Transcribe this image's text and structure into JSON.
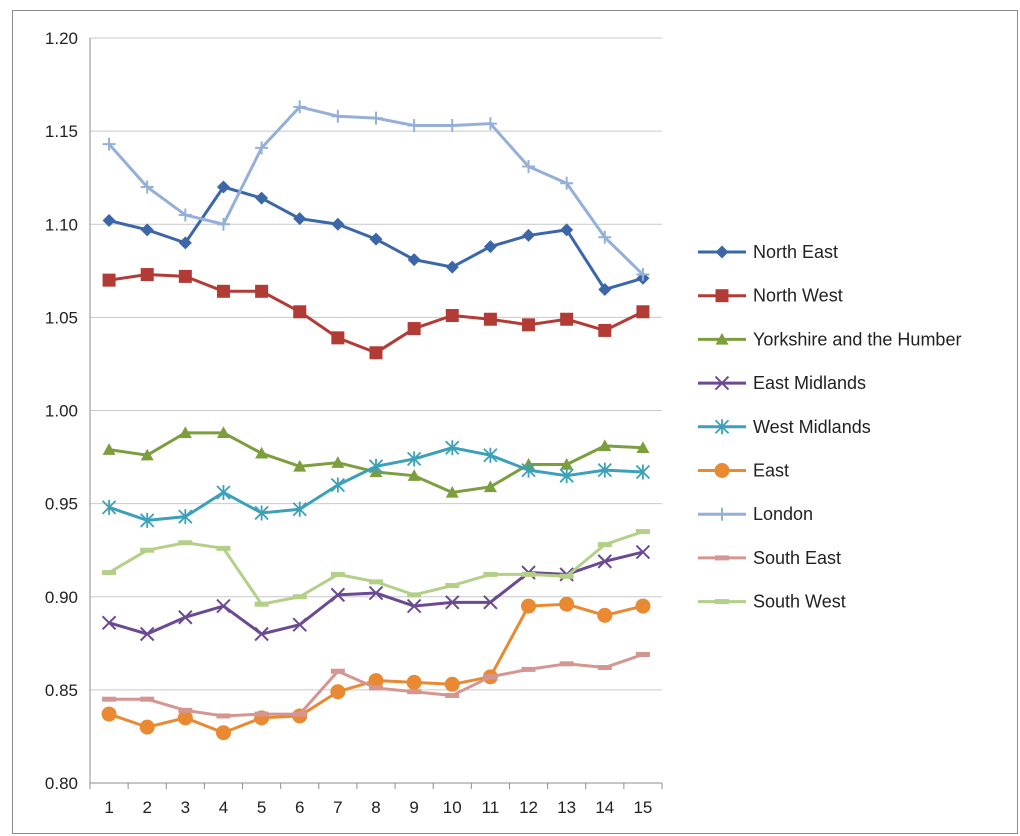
{
  "chart_data": {
    "type": "line",
    "title": "",
    "xlabel": "",
    "ylabel": "",
    "x": [
      1,
      2,
      3,
      4,
      5,
      6,
      7,
      8,
      9,
      10,
      11,
      12,
      13,
      14,
      15
    ],
    "x_tick_labels": [
      "1",
      "2",
      "3",
      "4",
      "5",
      "6",
      "7",
      "8",
      "9",
      "10",
      "11",
      "12",
      "13",
      "14",
      "15"
    ],
    "ylim": [
      0.8,
      1.2
    ],
    "y_ticks": [
      0.8,
      0.85,
      0.9,
      0.95,
      1.0,
      1.05,
      1.1,
      1.15,
      1.2
    ],
    "y_tick_labels": [
      "0.80",
      "0.85",
      "0.90",
      "0.95",
      "1.00",
      "1.05",
      "1.10",
      "1.15",
      "1.20"
    ],
    "grid": "horizontal",
    "legend_position": "right",
    "series": [
      {
        "name": "North East",
        "color": "#3b67a9",
        "marker": "diamond",
        "values": [
          1.102,
          1.097,
          1.09,
          1.12,
          1.114,
          1.103,
          1.1,
          1.092,
          1.081,
          1.077,
          1.088,
          1.094,
          1.097,
          1.065,
          1.071
        ]
      },
      {
        "name": "North West",
        "color": "#b23b36",
        "marker": "square",
        "values": [
          1.07,
          1.073,
          1.072,
          1.064,
          1.064,
          1.053,
          1.039,
          1.031,
          1.044,
          1.051,
          1.049,
          1.046,
          1.049,
          1.043,
          1.053
        ]
      },
      {
        "name": "Yorkshire and the Humber",
        "color": "#7c9e3c",
        "marker": "triangle",
        "values": [
          0.979,
          0.976,
          0.988,
          0.988,
          0.977,
          0.97,
          0.972,
          0.967,
          0.965,
          0.956,
          0.959,
          0.971,
          0.971,
          0.981,
          0.98
        ]
      },
      {
        "name": "East Midlands",
        "color": "#6b4a93",
        "marker": "x",
        "values": [
          0.886,
          0.88,
          0.889,
          0.895,
          0.88,
          0.885,
          0.901,
          0.902,
          0.895,
          0.897,
          0.897,
          0.913,
          0.912,
          0.919,
          0.924
        ]
      },
      {
        "name": "West Midlands",
        "color": "#3ca0b8",
        "marker": "star",
        "values": [
          0.948,
          0.941,
          0.943,
          0.956,
          0.945,
          0.947,
          0.96,
          0.97,
          0.974,
          0.98,
          0.976,
          0.968,
          0.965,
          0.968,
          0.967
        ]
      },
      {
        "name": "East",
        "color": "#e98a33",
        "marker": "circle",
        "values": [
          0.837,
          0.83,
          0.835,
          0.827,
          0.835,
          0.836,
          0.849,
          0.855,
          0.854,
          0.853,
          0.857,
          0.895,
          0.896,
          0.89,
          0.895
        ]
      },
      {
        "name": "London",
        "color": "#95b0d8",
        "marker": "plus",
        "values": [
          1.143,
          1.12,
          1.105,
          1.1,
          1.141,
          1.163,
          1.158,
          1.157,
          1.153,
          1.153,
          1.154,
          1.131,
          1.122,
          1.093,
          1.073
        ]
      },
      {
        "name": "South East",
        "color": "#d59590",
        "marker": "dash",
        "values": [
          0.845,
          0.845,
          0.839,
          0.836,
          0.837,
          0.837,
          0.86,
          0.851,
          0.849,
          0.847,
          0.857,
          0.861,
          0.864,
          0.862,
          0.869
        ]
      },
      {
        "name": "South West",
        "color": "#b3cf88",
        "marker": "dash",
        "values": [
          0.913,
          0.925,
          0.929,
          0.926,
          0.896,
          0.9,
          0.912,
          0.908,
          0.901,
          0.906,
          0.912,
          0.912,
          0.911,
          0.928,
          0.935
        ]
      }
    ]
  }
}
